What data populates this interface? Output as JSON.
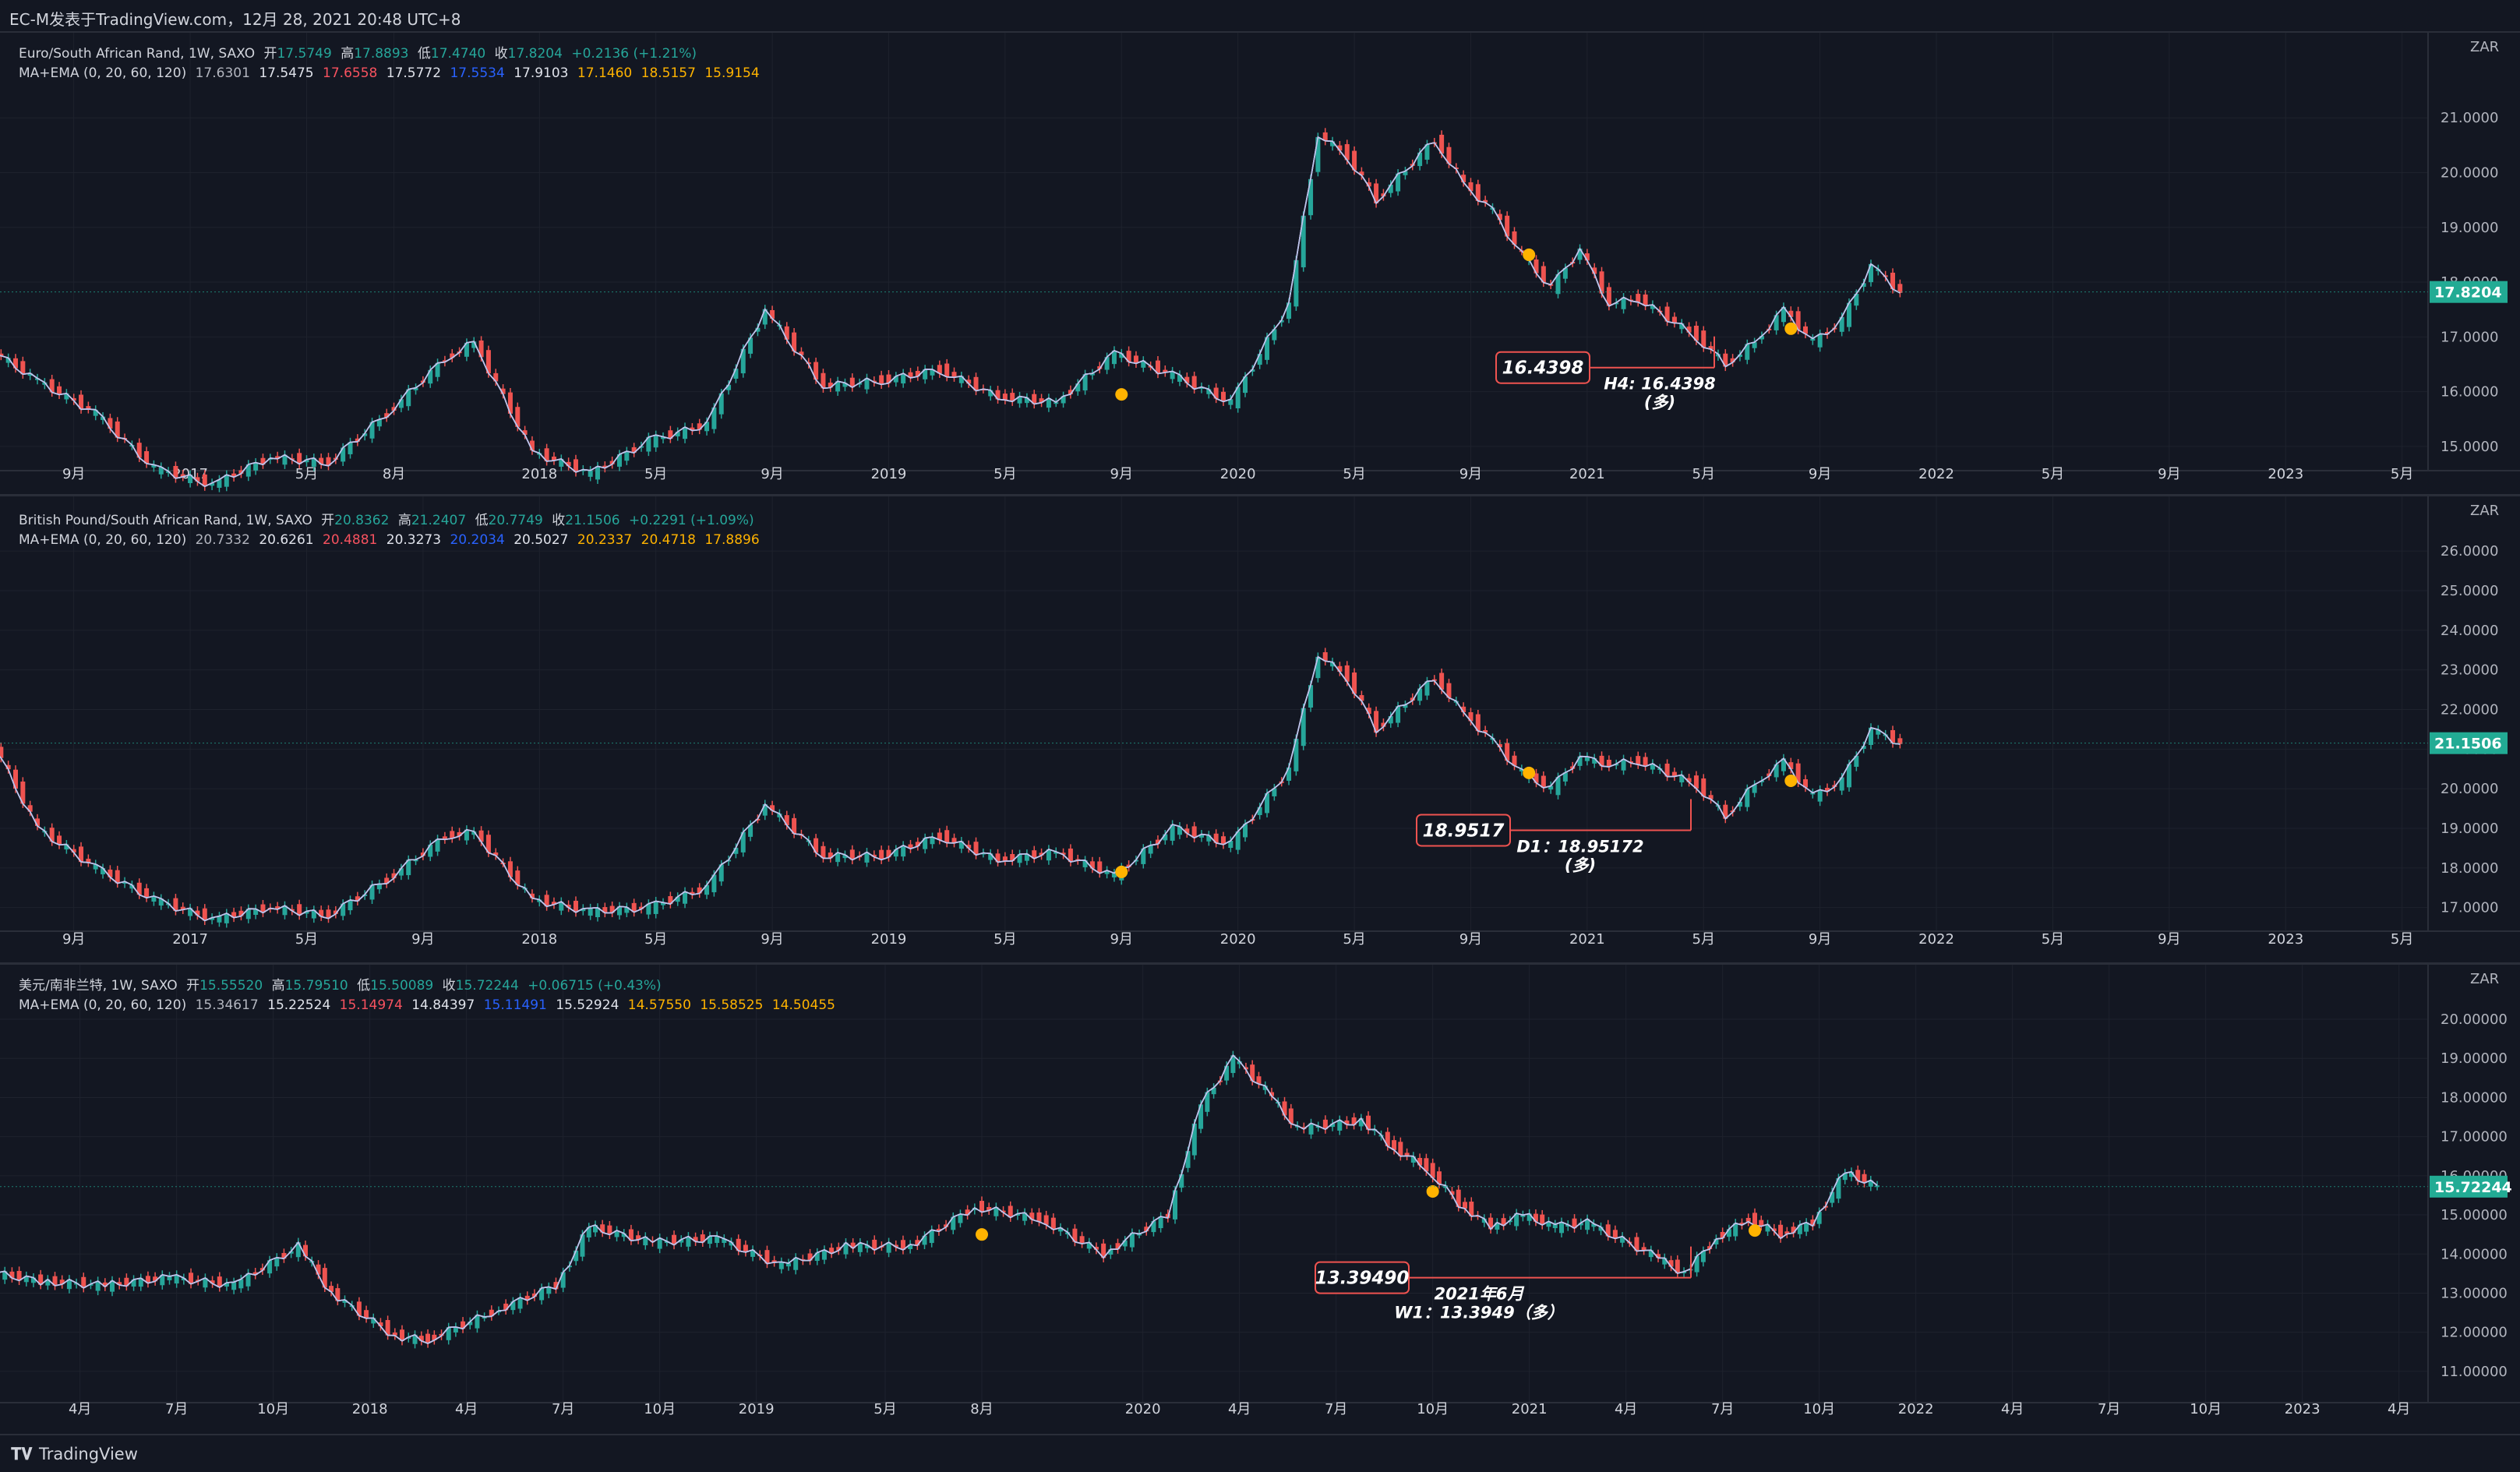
{
  "header": {
    "title": "EC-M发表于TradingView.com，12月 28, 2021 20:48 UTC+8"
  },
  "footer": {
    "brand": "TradingView"
  },
  "colors": {
    "background": "#131722",
    "up": "#26a69a",
    "down": "#ef5350",
    "ma_white": "#e0e3eb",
    "ma_red": "#f7525f",
    "ma_blue": "#2962ff",
    "marker": "#ffb300",
    "price_tag": "#22ab94"
  },
  "panes": [
    {
      "id": "eurzar",
      "legend": {
        "symbol": "Euro/South African Rand, 1W, SAXO",
        "open_label": "开",
        "open": "17.5749",
        "high_label": "高",
        "high": "17.8893",
        "low_label": "低",
        "low": "17.4740",
        "close_label": "收",
        "close": "17.8204",
        "change": "+0.2136 (+1.21%)",
        "ma_label": "MA+EMA (0, 20, 60, 120)",
        "ma_values": [
          "17.6301",
          "17.5475",
          "17.6558",
          "17.5772",
          "17.5534",
          "17.9103",
          "17.1460",
          "18.5157",
          "15.9154"
        ]
      },
      "currency": "ZAR",
      "yticks": [
        "21.0000",
        "20.0000",
        "19.0000",
        "18.0000",
        "17.0000",
        "16.0000",
        "15.0000"
      ],
      "ytick_values": [
        21,
        20,
        19,
        18,
        17,
        16,
        15
      ],
      "ylim": [
        14.7,
        21.7
      ],
      "last_price": "17.8204",
      "last_value": 17.8204,
      "xticks": [
        "9月",
        "2017",
        "5月",
        "8月",
        "2018",
        "5月",
        "9月",
        "2019",
        "5月",
        "9月",
        "2020",
        "5月",
        "9月",
        "2021",
        "5月",
        "9月",
        "2022",
        "5月",
        "9月",
        "2023",
        "5月"
      ],
      "xtick_dates": [
        "2016-09",
        "2017-01",
        "2017-05",
        "2017-08",
        "2018-01",
        "2018-05",
        "2018-09",
        "2019-01",
        "2019-05",
        "2019-09",
        "2020-01",
        "2020-05",
        "2020-09",
        "2021-01",
        "2021-05",
        "2021-09",
        "2022-01",
        "2022-05",
        "2022-09",
        "2023-01",
        "2023-05"
      ],
      "annotation": {
        "box": "16.4398",
        "line1": "H4: 16.4398",
        "line2": "(多)",
        "value": 16.4398
      },
      "markers": [
        {
          "date": "2019-09",
          "value": 15.95
        },
        {
          "date": "2020-11",
          "value": 18.5
        },
        {
          "date": "2021-08",
          "value": 17.15
        }
      ],
      "series_points": [
        [
          "2016-06",
          16.9
        ],
        [
          "2016-08",
          16.2
        ],
        [
          "2016-10",
          15.6
        ],
        [
          "2016-12",
          14.6
        ],
        [
          "2017-02",
          14.3
        ],
        [
          "2017-04",
          14.8
        ],
        [
          "2017-06",
          14.7
        ],
        [
          "2017-08",
          15.6
        ],
        [
          "2017-10",
          16.6
        ],
        [
          "2017-11",
          16.9
        ],
        [
          "2018-01",
          14.9
        ],
        [
          "2018-03",
          14.5
        ],
        [
          "2018-05",
          15.1
        ],
        [
          "2018-07",
          15.4
        ],
        [
          "2018-09",
          17.5
        ],
        [
          "2018-11",
          16.1
        ],
        [
          "2019-01",
          16.2
        ],
        [
          "2019-03",
          16.4
        ],
        [
          "2019-05",
          15.9
        ],
        [
          "2019-07",
          15.8
        ],
        [
          "2019-09",
          16.7
        ],
        [
          "2019-11",
          16.3
        ],
        [
          "2020-01",
          15.8
        ],
        [
          "2020-03",
          17.6
        ],
        [
          "2020-04",
          20.7
        ],
        [
          "2020-05",
          20.3
        ],
        [
          "2020-06",
          19.5
        ],
        [
          "2020-08",
          20.6
        ],
        [
          "2020-09",
          19.8
        ],
        [
          "2020-10",
          19.3
        ],
        [
          "2020-11",
          18.5
        ],
        [
          "2020-12",
          17.9
        ],
        [
          "2021-01",
          18.6
        ],
        [
          "2021-02",
          17.6
        ],
        [
          "2021-03",
          17.7
        ],
        [
          "2021-05",
          17.0
        ],
        [
          "2021-06",
          16.5
        ],
        [
          "2021-07",
          16.9
        ],
        [
          "2021-08",
          17.5
        ],
        [
          "2021-09",
          16.9
        ],
        [
          "2021-10",
          17.3
        ],
        [
          "2021-11",
          18.3
        ],
        [
          "2021-12",
          17.82
        ]
      ]
    },
    {
      "id": "gbpzar",
      "legend": {
        "symbol": "British Pound/South African Rand, 1W, SAXO",
        "open_label": "开",
        "open": "20.8362",
        "high_label": "高",
        "high": "21.2407",
        "low_label": "低",
        "low": "20.7749",
        "close_label": "收",
        "close": "21.1506",
        "change": "+0.2291 (+1.09%)",
        "ma_label": "MA+EMA (0, 20, 60, 120)",
        "ma_values": [
          "20.7332",
          "20.6261",
          "20.4881",
          "20.3273",
          "20.2034",
          "20.5027",
          "20.2337",
          "20.4718",
          "17.8896"
        ]
      },
      "currency": "ZAR",
      "yticks": [
        "26.0000",
        "25.0000",
        "24.0000",
        "23.0000",
        "22.0000",
        "21.0000",
        "20.0000",
        "19.0000",
        "18.0000",
        "17.0000"
      ],
      "ytick_values": [
        26,
        25,
        24,
        23,
        22,
        21,
        20,
        19,
        18,
        17
      ],
      "ylim": [
        16.6,
        26.2
      ],
      "last_price": "21.1506",
      "last_value": 21.1506,
      "xticks": [
        "9月",
        "2017",
        "5月",
        "9月",
        "2018",
        "5月",
        "9月",
        "2019",
        "5月",
        "9月",
        "2020",
        "5月",
        "9月",
        "2021",
        "5月",
        "9月",
        "2022",
        "5月",
        "9月",
        "2023",
        "5月"
      ],
      "xtick_dates": [
        "2016-09",
        "2017-01",
        "2017-05",
        "2017-09",
        "2018-01",
        "2018-05",
        "2018-09",
        "2019-01",
        "2019-05",
        "2019-09",
        "2020-01",
        "2020-05",
        "2020-09",
        "2021-01",
        "2021-05",
        "2021-09",
        "2022-01",
        "2022-05",
        "2022-09",
        "2023-01",
        "2023-05"
      ],
      "annotation": {
        "box": "18.9517",
        "line1": "D1：18.95172",
        "line2": "(多)",
        "value": 18.9517
      },
      "markers": [
        {
          "date": "2019-09",
          "value": 17.9
        },
        {
          "date": "2020-11",
          "value": 20.4
        },
        {
          "date": "2021-08",
          "value": 20.2
        }
      ],
      "series_points": [
        [
          "2016-06",
          21.8
        ],
        [
          "2016-08",
          19.0
        ],
        [
          "2016-10",
          18.0
        ],
        [
          "2016-12",
          17.2
        ],
        [
          "2017-02",
          16.7
        ],
        [
          "2017-04",
          17.0
        ],
        [
          "2017-06",
          16.8
        ],
        [
          "2017-08",
          17.7
        ],
        [
          "2017-10",
          18.8
        ],
        [
          "2017-11",
          18.9
        ],
        [
          "2018-01",
          17.2
        ],
        [
          "2018-03",
          16.9
        ],
        [
          "2018-05",
          17.0
        ],
        [
          "2018-07",
          17.5
        ],
        [
          "2018-09",
          19.6
        ],
        [
          "2018-11",
          18.3
        ],
        [
          "2019-01",
          18.3
        ],
        [
          "2019-03",
          18.8
        ],
        [
          "2019-05",
          18.2
        ],
        [
          "2019-07",
          18.4
        ],
        [
          "2019-09",
          17.8
        ],
        [
          "2019-11",
          19.0
        ],
        [
          "2020-01",
          18.6
        ],
        [
          "2020-03",
          20.5
        ],
        [
          "2020-04",
          23.4
        ],
        [
          "2020-05",
          22.8
        ],
        [
          "2020-06",
          21.5
        ],
        [
          "2020-08",
          22.8
        ],
        [
          "2020-09",
          21.9
        ],
        [
          "2020-10",
          21.2
        ],
        [
          "2020-11",
          20.4
        ],
        [
          "2020-12",
          20.0
        ],
        [
          "2021-01",
          20.8
        ],
        [
          "2021-02",
          20.6
        ],
        [
          "2021-03",
          20.7
        ],
        [
          "2021-05",
          20.1
        ],
        [
          "2021-06",
          19.3
        ],
        [
          "2021-07",
          20.1
        ],
        [
          "2021-08",
          20.7
        ],
        [
          "2021-09",
          19.8
        ],
        [
          "2021-10",
          20.2
        ],
        [
          "2021-11",
          21.5
        ],
        [
          "2021-12",
          21.15
        ]
      ]
    },
    {
      "id": "usdzar",
      "legend": {
        "symbol": "美元/南非兰特, 1W, SAXO",
        "open_label": "开",
        "open": "15.55520",
        "high_label": "高",
        "high": "15.79510",
        "low_label": "低",
        "low": "15.50089",
        "close_label": "收",
        "close": "15.72244",
        "change": "+0.06715 (+0.43%)",
        "ma_label": "MA+EMA (0, 20, 60, 120)",
        "ma_values": [
          "15.34617",
          "15.22524",
          "15.14974",
          "14.84397",
          "15.11491",
          "15.52924",
          "14.57550",
          "15.58525",
          "14.50455"
        ]
      },
      "currency": "ZAR",
      "yticks": [
        "20.00000",
        "19.00000",
        "18.00000",
        "17.00000",
        "16.00000",
        "15.00000",
        "14.00000",
        "13.00000",
        "12.00000",
        "11.00000"
      ],
      "ytick_values": [
        20,
        19,
        18,
        17,
        16,
        15,
        14,
        13,
        12,
        11
      ],
      "ylim": [
        10.4,
        20.2
      ],
      "last_price": "15.72244",
      "last_value": 15.72244,
      "xticks": [
        "4月",
        "7月",
        "10月",
        "2018",
        "4月",
        "7月",
        "10月",
        "2019",
        "5月",
        "8月",
        "2020",
        "4月",
        "7月",
        "10月",
        "2021",
        "4月",
        "7月",
        "10月",
        "2022",
        "4月",
        "7月",
        "10月",
        "2023",
        "4月"
      ],
      "xtick_dates": [
        "2017-04",
        "2017-07",
        "2017-10",
        "2018-01",
        "2018-04",
        "2018-07",
        "2018-10",
        "2019-01",
        "2019-05",
        "2019-08",
        "2020-01",
        "2020-04",
        "2020-07",
        "2020-10",
        "2021-01",
        "2021-04",
        "2021-07",
        "2021-10",
        "2022-01",
        "2022-04",
        "2022-07",
        "2022-10",
        "2023-01",
        "2023-04"
      ],
      "annotation": {
        "box": "13.39490",
        "line1": "2021年6月",
        "line2": "W1：13.3949（多）",
        "value": 13.3949
      },
      "markers": [
        {
          "date": "2019-08",
          "value": 14.5
        },
        {
          "date": "2020-10",
          "value": 15.6
        },
        {
          "date": "2021-08",
          "value": 14.6
        }
      ],
      "series_points": [
        [
          "2017-01",
          13.6
        ],
        [
          "2017-03",
          13.3
        ],
        [
          "2017-05",
          13.2
        ],
        [
          "2017-07",
          13.4
        ],
        [
          "2017-09",
          13.2
        ],
        [
          "2017-11",
          14.2
        ],
        [
          "2017-12",
          13.0
        ],
        [
          "2018-02",
          11.9
        ],
        [
          "2018-03",
          11.8
        ],
        [
          "2018-05",
          12.5
        ],
        [
          "2018-07",
          13.2
        ],
        [
          "2018-08",
          14.7
        ],
        [
          "2018-10",
          14.3
        ],
        [
          "2018-12",
          14.4
        ],
        [
          "2019-02",
          13.7
        ],
        [
          "2019-04",
          14.2
        ],
        [
          "2019-06",
          14.2
        ],
        [
          "2019-08",
          15.2
        ],
        [
          "2019-10",
          14.9
        ],
        [
          "2019-12",
          14.0
        ],
        [
          "2020-02",
          15.0
        ],
        [
          "2020-03",
          17.8
        ],
        [
          "2020-04",
          19.0
        ],
        [
          "2020-05",
          18.2
        ],
        [
          "2020-06",
          17.2
        ],
        [
          "2020-08",
          17.4
        ],
        [
          "2020-09",
          16.7
        ],
        [
          "2020-10",
          16.2
        ],
        [
          "2020-11",
          15.3
        ],
        [
          "2020-12",
          14.7
        ],
        [
          "2021-01",
          15.0
        ],
        [
          "2021-02",
          14.7
        ],
        [
          "2021-03",
          14.8
        ],
        [
          "2021-05",
          14.0
        ],
        [
          "2021-06",
          13.5
        ],
        [
          "2021-07",
          14.4
        ],
        [
          "2021-08",
          14.9
        ],
        [
          "2021-09",
          14.5
        ],
        [
          "2021-10",
          14.8
        ],
        [
          "2021-11",
          16.1
        ],
        [
          "2021-12",
          15.72
        ]
      ]
    }
  ]
}
